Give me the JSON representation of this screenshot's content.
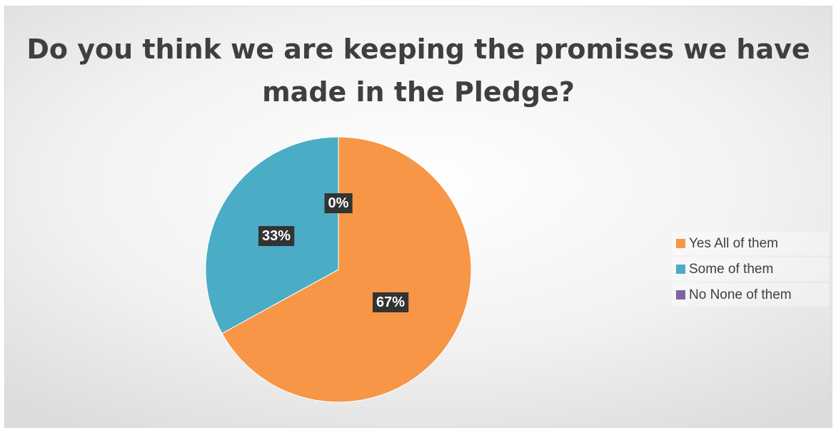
{
  "chart_data": {
    "type": "pie",
    "title": "Do you think we are keeping the promises we have made in the Pledge?",
    "categories": [
      "Yes All of them",
      "Some of them",
      "No None of them"
    ],
    "values": [
      67,
      33,
      0
    ],
    "data_labels": [
      "67%",
      "33%",
      "0%"
    ],
    "colors": [
      "#f79646",
      "#4bacc6",
      "#8064a2"
    ],
    "legend_position": "right"
  }
}
